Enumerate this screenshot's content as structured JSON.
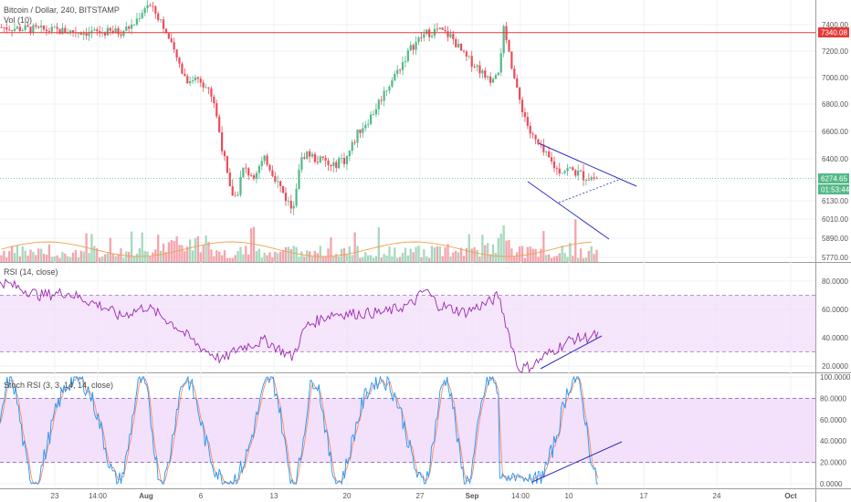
{
  "header": {
    "symbol_line": "Bitcoin / Dollar, 240, BITSTAMP",
    "volume_label": "Vol (10)"
  },
  "colors": {
    "up": "#53b987",
    "down": "#eb4d5c",
    "vol_up": "#a8d8bf",
    "vol_down": "#f3a5ad",
    "ma": "#f0a04b",
    "rsi_line": "#9c27b0",
    "rsi_band": "#f1dcfb",
    "stoch_k": "#2196f3",
    "stoch_d": "#ff8a65",
    "trend": "#3030c0",
    "hline": "#e53935",
    "price_tag": "#e53935",
    "current_tag": "#53b987"
  },
  "chart_data": [
    {
      "type": "candlestick",
      "panel": "price",
      "x_tick_labels": [
        "23",
        "14:00",
        "Aug",
        "6",
        "13",
        "20",
        "27",
        "Sep",
        "14:00",
        "10",
        "17",
        "24",
        "Oct"
      ],
      "y_ticks": [
        5770,
        5890,
        6010,
        6130,
        6400,
        6600,
        6800,
        7000,
        7200,
        7400
      ],
      "y_tick_labels": [
        "5770.00",
        "5890.00",
        "6010.00",
        "6130.00",
        "6400.00",
        "6600.00",
        "6800.00",
        "7000.00",
        "7200.00",
        "7400.00"
      ],
      "horizontal_line": 7340.08,
      "horizontal_line_label": "7340.08",
      "current_price": 6274.65,
      "current_price_label": "6274.65",
      "countdown_label": "01:53:44",
      "path_x": [
        0,
        6,
        10,
        14,
        18,
        20,
        22,
        24,
        26,
        28,
        30,
        32,
        33.5,
        34.5,
        35.5,
        36.5,
        38,
        40,
        42,
        44,
        45,
        46,
        47.5,
        49,
        50,
        51,
        52,
        54,
        56,
        58,
        60,
        62,
        64,
        66,
        68,
        70,
        72,
        74,
        75,
        76,
        78,
        80,
        82,
        84,
        86,
        88,
        90
      ],
      "path_y": [
        7380,
        7360,
        7350,
        7340,
        7345,
        7400,
        7560,
        7450,
        7200,
        6980,
        7000,
        6850,
        6450,
        6200,
        6150,
        6330,
        6300,
        6400,
        6230,
        6070,
        6350,
        6450,
        6400,
        6380,
        6330,
        6400,
        6390,
        6600,
        6720,
        6900,
        7060,
        7230,
        7330,
        7360,
        7310,
        7160,
        7080,
        6950,
        7000,
        7380,
        6880,
        6580,
        6440,
        6330,
        6330,
        6290,
        6275
      ],
      "n_candles": 225,
      "volume_profile": "spiky bars, taller around Aug 6–13 and Sep 5–6"
    },
    {
      "type": "line",
      "panel": "rsi",
      "title": "RSI (14, close)",
      "y_ticks": [
        20,
        40,
        60,
        80
      ],
      "y_tick_labels": [
        "20.0000",
        "40.0000",
        "60.0000",
        "80.0000"
      ],
      "band": [
        30,
        70
      ],
      "path_x": [
        0,
        6,
        10,
        16,
        18,
        22,
        26,
        30,
        33.5,
        36,
        40,
        44,
        46,
        50,
        54,
        58,
        62,
        64,
        66,
        70,
        74,
        75,
        78,
        80,
        82,
        84,
        86,
        88,
        90
      ],
      "path_y": [
        80,
        70,
        72,
        61,
        55,
        62,
        50,
        34,
        24,
        33,
        38,
        26,
        48,
        57,
        57,
        58,
        64,
        74,
        63,
        58,
        66,
        70,
        18,
        20,
        27,
        33,
        39,
        40,
        42
      ]
    },
    {
      "type": "line",
      "panel": "stoch_rsi",
      "title": "Stoch RSI (3, 3, 14, 14, close)",
      "series": [
        {
          "name": "K",
          "shape": "oscillating between 0 and 100"
        },
        {
          "name": "D",
          "shape": "smoothed K"
        }
      ],
      "y_ticks": [
        0,
        20,
        40,
        60,
        80,
        100
      ],
      "y_tick_labels": [
        "0.0000",
        "20.0000",
        "40.0000",
        "60.0000",
        "80.0000",
        "100.0000"
      ],
      "band": [
        20,
        80
      ]
    }
  ]
}
